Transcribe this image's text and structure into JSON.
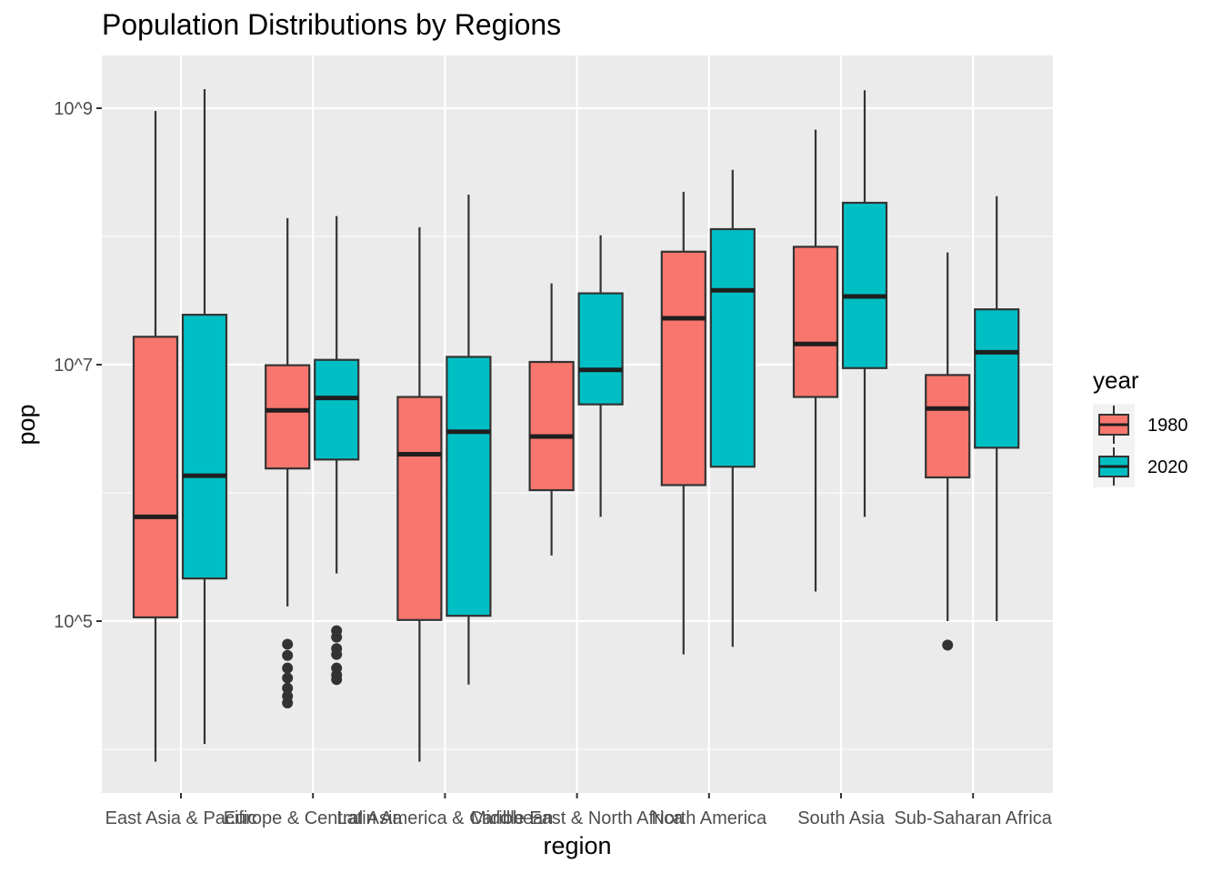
{
  "chart_data": {
    "type": "box",
    "title": "Population Distributions by Regions",
    "xlabel": "region",
    "ylabel": "pop",
    "y_scale": "log10",
    "ylim": [
      5000,
      2500000000
    ],
    "y_ticks": [
      {
        "value": 100000,
        "label": "10^5"
      },
      {
        "value": 10000000,
        "label": "10^7"
      },
      {
        "value": 1000000000,
        "label": "10^9"
      }
    ],
    "categories": [
      "East Asia & Pacific",
      "Europe & Central Asia",
      "Latin America & Caribbean",
      "Middle East & North Africa",
      "North America",
      "South Asia",
      "Sub-Saharan Africa"
    ],
    "legend": {
      "title": "year",
      "position": "right"
    },
    "series": [
      {
        "name": "1980",
        "color": "#F8766D",
        "boxes": [
          {
            "whisker_low": 8000,
            "q1": 107000,
            "median": 650000,
            "q3": 16500000,
            "whisker_high": 950000000,
            "outliers": []
          },
          {
            "whisker_low": 130000,
            "q1": 1550000,
            "median": 4400000,
            "q3": 9900000,
            "whisker_high": 139000000,
            "outliers": [
              66000,
              54000,
              43000,
              36000,
              30000,
              26000,
              23000
            ]
          },
          {
            "whisker_low": 8000,
            "q1": 102000,
            "median": 2000000,
            "q3": 5600000,
            "whisker_high": 118000000,
            "outliers": []
          },
          {
            "whisker_low": 325000,
            "q1": 1050000,
            "median": 2750000,
            "q3": 10500000,
            "whisker_high": 43000000,
            "outliers": []
          },
          {
            "whisker_low": 55000,
            "q1": 1150000,
            "median": 23000000,
            "q3": 76000000,
            "whisker_high": 223000000,
            "outliers": []
          },
          {
            "whisker_low": 170000,
            "q1": 5600000,
            "median": 14500000,
            "q3": 83000000,
            "whisker_high": 680000000,
            "outliers": []
          },
          {
            "whisker_low": 100000,
            "q1": 1320000,
            "median": 4550000,
            "q3": 8300000,
            "whisker_high": 75000000,
            "outliers": [
              65000
            ]
          }
        ]
      },
      {
        "name": "2020",
        "color": "#00BFC4",
        "boxes": [
          {
            "whisker_low": 11000,
            "q1": 215000,
            "median": 1360000,
            "q3": 24500000,
            "whisker_high": 1410000000,
            "outliers": []
          },
          {
            "whisker_low": 235000,
            "q1": 1820000,
            "median": 5500000,
            "q3": 10900000,
            "whisker_high": 144000000,
            "outliers": [
              84000,
              75000,
              61000,
              55000,
              43000,
              38000,
              35000
            ]
          },
          {
            "whisker_low": 32000,
            "q1": 110000,
            "median": 3000000,
            "q3": 11500000,
            "whisker_high": 212000000,
            "outliers": []
          },
          {
            "whisker_low": 650000,
            "q1": 4900000,
            "median": 9100000,
            "q3": 36000000,
            "whisker_high": 102000000,
            "outliers": []
          },
          {
            "whisker_low": 63000,
            "q1": 1600000,
            "median": 38000000,
            "q3": 114000000,
            "whisker_high": 331000000,
            "outliers": []
          },
          {
            "whisker_low": 650000,
            "q1": 9400000,
            "median": 34000000,
            "q3": 183000000,
            "whisker_high": 1380000000,
            "outliers": []
          },
          {
            "whisker_low": 100000,
            "q1": 2250000,
            "median": 12500000,
            "q3": 27000000,
            "whisker_high": 206000000,
            "outliers": []
          }
        ]
      }
    ]
  }
}
